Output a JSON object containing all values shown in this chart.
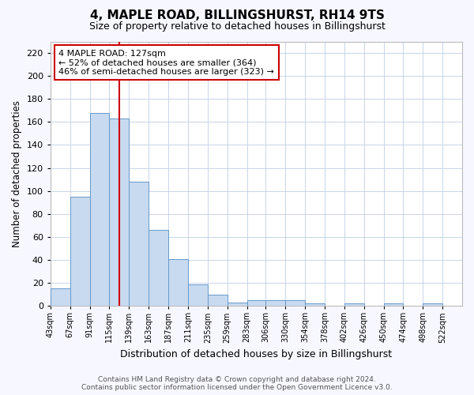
{
  "title": "4, MAPLE ROAD, BILLINGSHURST, RH14 9TS",
  "subtitle": "Size of property relative to detached houses in Billingshurst",
  "xlabel": "Distribution of detached houses by size in Billingshurst",
  "ylabel": "Number of detached properties",
  "footer_line1": "Contains HM Land Registry data © Crown copyright and database right 2024.",
  "footer_line2": "Contains public sector information licensed under the Open Government Licence v3.0.",
  "bin_labels": [
    "43sqm",
    "67sqm",
    "91sqm",
    "115sqm",
    "139sqm",
    "163sqm",
    "187sqm",
    "211sqm",
    "235sqm",
    "259sqm",
    "283sqm",
    "306sqm",
    "330sqm",
    "354sqm",
    "378sqm",
    "402sqm",
    "426sqm",
    "450sqm",
    "474sqm",
    "498sqm",
    "522sqm"
  ],
  "bar_heights": [
    15,
    95,
    168,
    163,
    108,
    66,
    41,
    19,
    10,
    3,
    5,
    5,
    5,
    2,
    0,
    2,
    0,
    2,
    0,
    2
  ],
  "bar_color": "#c8daf0",
  "bar_edge_color": "#6699cc",
  "grid_color": "#c8d4e8",
  "vline_x": 127,
  "vline_color": "#cc0000",
  "annotation_text": "4 MAPLE ROAD: 127sqm\n← 52% of detached houses are smaller (364)\n46% of semi-detached houses are larger (323) →",
  "annotation_box_color": "#ffffff",
  "annotation_box_edge_color": "#cc0000",
  "ylim": [
    0,
    230
  ],
  "yticks": [
    0,
    20,
    40,
    60,
    80,
    100,
    120,
    140,
    160,
    180,
    200,
    220
  ],
  "bin_edges": [
    43,
    67,
    91,
    115,
    139,
    163,
    187,
    211,
    235,
    259,
    283,
    306,
    330,
    354,
    378,
    402,
    426,
    450,
    474,
    498,
    522
  ],
  "background_color": "#f7f7ff",
  "plot_background_color": "#ffffff"
}
